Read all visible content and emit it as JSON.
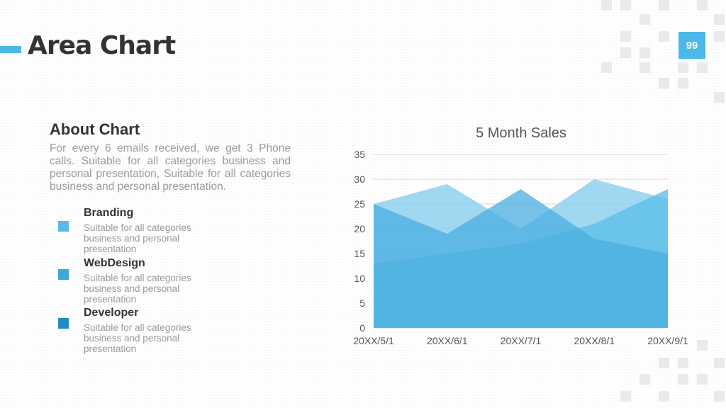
{
  "header": {
    "title": "Area Chart",
    "page_number": "99"
  },
  "about": {
    "heading": "About Chart",
    "body": "For every 6 emails received, we get 3 Phone calls. Suitable for all categories business and personal presentation, Suitable for all categories business and personal presentation."
  },
  "legend": [
    {
      "name": "Branding",
      "description": "Suitable for all categories business and personal presentation",
      "color": "#5ab9e6"
    },
    {
      "name": "WebDesign",
      "description": "Suitable for all categories business and personal presentation",
      "color": "#3aa8de"
    },
    {
      "name": "Developer",
      "description": "Suitable for all categories business and personal presentation",
      "color": "#2588c8"
    }
  ],
  "colors": {
    "accent": "#4ab8e8",
    "text_dark": "#333333",
    "text_muted": "#9a9a9a"
  },
  "chart_data": {
    "type": "area",
    "title": "5 Month Sales",
    "xlabel": "",
    "ylabel": "",
    "categories": [
      "20XX/5/1",
      "20XX/6/1",
      "20XX/7/1",
      "20XX/8/1",
      "20XX/9/1"
    ],
    "yticks": [
      0,
      5,
      10,
      15,
      20,
      25,
      30,
      35
    ],
    "ylim": [
      0,
      35
    ],
    "grid": true,
    "series": [
      {
        "values": [
          25,
          29,
          20,
          30,
          26
        ],
        "color": "#8fd0ef",
        "opacity": 0.85
      },
      {
        "values": [
          13,
          15,
          17,
          21,
          28
        ],
        "color": "#5ec0ea",
        "opacity": 0.8
      },
      {
        "values": [
          25,
          19,
          28,
          18,
          15
        ],
        "color": "#4aaee0",
        "opacity": 0.75
      }
    ]
  }
}
